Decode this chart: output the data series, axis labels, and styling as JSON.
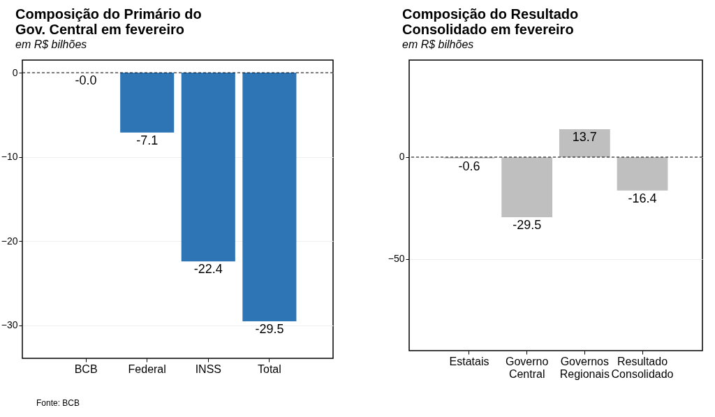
{
  "chart_data": [
    {
      "type": "bar",
      "title": "Composição do Primário do Gov. Central em fevereiro",
      "subtitle": "em R$ bilhões",
      "categories": [
        "BCB",
        "Federal",
        "INSS",
        "Total"
      ],
      "values": [
        0,
        -7.1,
        -22.4,
        -29.5
      ],
      "value_labels": [
        "-0.0",
        "-7.1",
        "-22.4",
        "-29.5"
      ],
      "color": "#2e75b6",
      "ylim": [
        -33.9,
        1.5
      ],
      "yticks": [
        -30,
        -20,
        -10,
        0
      ],
      "grid": "y",
      "ref_lines": [
        {
          "axis": "y",
          "value": 0,
          "line_style": "dashed",
          "color": "#000000"
        }
      ],
      "annotations": [
        "Fonte: BCB"
      ]
    },
    {
      "type": "bar",
      "title": "Composição do Resultado Consolidado em fevereiro",
      "subtitle": "em R$ bilhões",
      "categories": [
        "Estatais",
        "Governo Central",
        "Governos Regionais",
        "Resultado Consolidado"
      ],
      "values": [
        -0.6,
        -29.5,
        13.7,
        -16.4
      ],
      "data_labels": true,
      "color": "#bfbfbf",
      "ylim": [
        -94.9,
        47.6
      ],
      "yticks": [
        -50,
        0
      ],
      "grid": "y",
      "ref_lines": [
        {
          "axis": "y",
          "value": 0,
          "line_style": "dashed",
          "color": "#000000"
        }
      ]
    }
  ]
}
